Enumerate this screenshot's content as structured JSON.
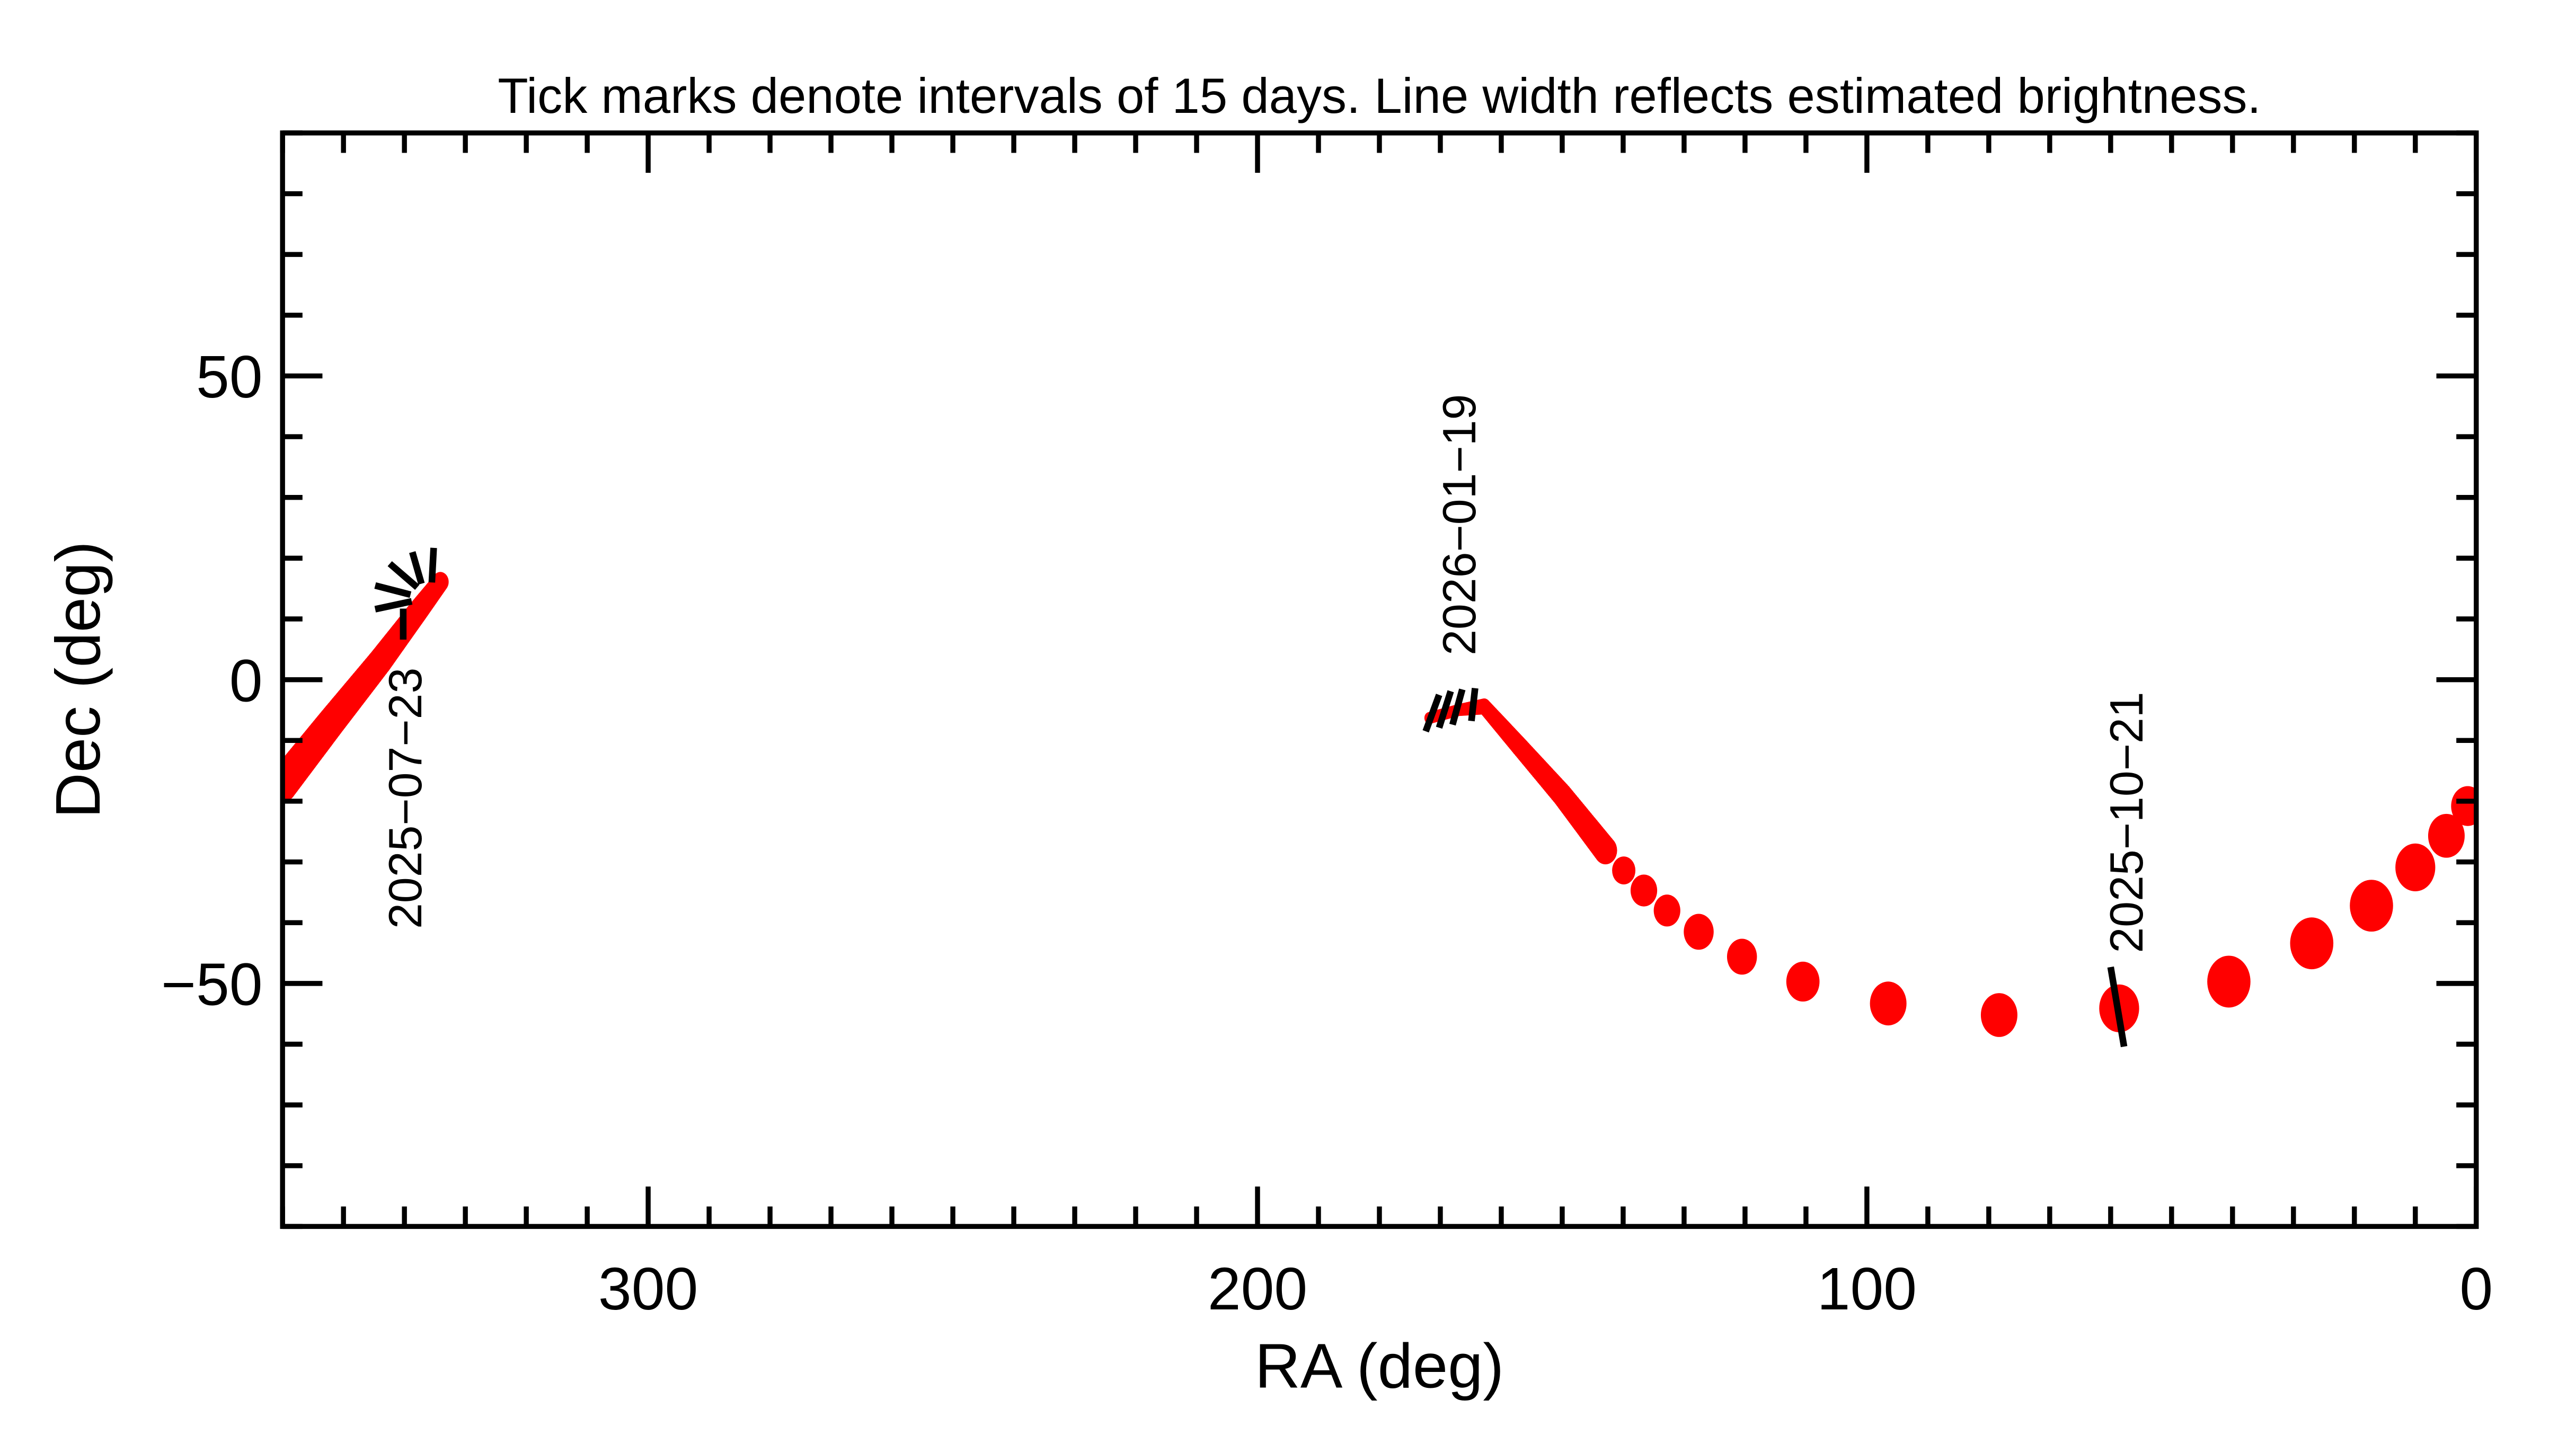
{
  "chart_data": {
    "type": "scatter",
    "title": "Tick marks denote intervals of 15 days.  Line width reflects estimated brightness.",
    "xlabel": "RA (deg)",
    "ylabel": "Dec (deg)",
    "xlim": [
      360,
      0
    ],
    "ylim": [
      -90,
      90
    ],
    "x_ticks": [
      300,
      200,
      100,
      0
    ],
    "y_ticks": [
      -50,
      0,
      50
    ],
    "x_tick_labels": [
      "300",
      "200",
      "100",
      "0"
    ],
    "y_tick_labels": [
      "−50",
      "0",
      "50"
    ],
    "minor_tick_step": 10,
    "grid": false,
    "colors": {
      "track": "#ff0000",
      "ticks": "#000000",
      "axes": "#000000"
    },
    "tracks": [
      {
        "connected": true,
        "points": [
          [
            360,
            -17.2,
            9
          ],
          [
            352,
            -7,
            8
          ],
          [
            344,
            3,
            7
          ],
          [
            338,
            11,
            6
          ],
          [
            334.1,
            16.1,
            5
          ]
        ]
      },
      {
        "connected": false,
        "points": [
          [
            1.4,
            -20.8,
            10
          ],
          [
            4.9,
            -25.7,
            11
          ],
          [
            10,
            -30.9,
            12
          ],
          [
            17.2,
            -37.2,
            13
          ],
          [
            27,
            -43.4,
            13
          ],
          [
            40.6,
            -49.7,
            13
          ],
          [
            58.6,
            -54.1,
            12
          ],
          [
            78.3,
            -55.2,
            11
          ],
          [
            96.5,
            -53.3,
            11
          ],
          [
            110.5,
            -49.7,
            10
          ],
          [
            120.5,
            -45.6,
            9
          ],
          [
            127.6,
            -41.5,
            9
          ],
          [
            132.8,
            -38,
            8
          ],
          [
            136.6,
            -34.7,
            8
          ],
          [
            139.9,
            -31.4,
            7
          ]
        ]
      },
      {
        "connected": true,
        "points": [
          [
            142.9,
            -28.1,
            7
          ],
          [
            150,
            -19,
            6
          ],
          [
            157,
            -11,
            5
          ],
          [
            162.8,
            -4.4,
            4
          ],
          [
            167,
            -5,
            3
          ],
          [
            171.8,
            -6.3,
            3
          ]
        ]
      }
    ],
    "interval_ticks": [
      [
        340.2,
        11.7,
        340.2,
        6.6
      ],
      [
        344.8,
        11.6,
        338.8,
        12.9
      ],
      [
        344.8,
        15.5,
        339.0,
        14.0
      ],
      [
        342.4,
        19.1,
        337.9,
        15.2
      ],
      [
        338.7,
        21.0,
        337.2,
        15.8
      ],
      [
        335.2,
        21.7,
        335.5,
        16.0
      ],
      [
        172.4,
        -8.5,
        170.2,
        -2.5
      ],
      [
        170.2,
        -7.9,
        168.3,
        -1.9
      ],
      [
        168.0,
        -7.4,
        166.4,
        -1.6
      ],
      [
        164.9,
        -6.8,
        164.3,
        -1.4
      ],
      [
        60.0,
        -47.3,
        57.8,
        -60.4
      ]
    ],
    "date_labels": [
      {
        "text": "2025−07−23",
        "ra": 340.5,
        "dec": 2
      },
      {
        "text": "2026−01−19",
        "ra": 167,
        "dec": 4
      },
      {
        "text": "2025−10−21",
        "ra": 57.5,
        "dec": -45
      }
    ]
  }
}
